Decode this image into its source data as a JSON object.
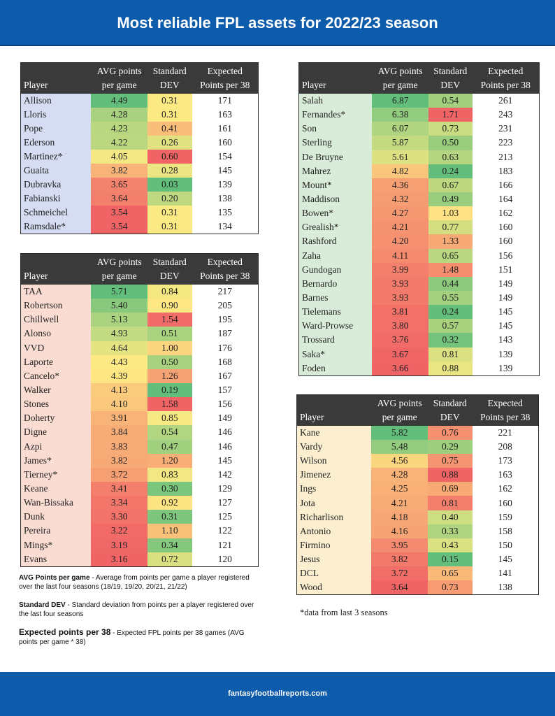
{
  "title": "Most reliable FPL assets for 2022/23 season",
  "footer": "fantasyfootballreports.com",
  "headers": {
    "player": "Player",
    "avg": "AVG points\nper game",
    "std": "Standard\nDEV",
    "exp": "Expected\nPoints per 38"
  },
  "tables": {
    "gk": {
      "rows": [
        [
          "Allison",
          "4.49",
          "0.31",
          "171"
        ],
        [
          "Lloris",
          "4.28",
          "0.31",
          "163"
        ],
        [
          "Pope",
          "4.23",
          "0.41",
          "161"
        ],
        [
          "Ederson",
          "4.22",
          "0.26",
          "160"
        ],
        [
          "Martinez*",
          "4.05",
          "0.60",
          "154"
        ],
        [
          "Guaita",
          "3.82",
          "0.28",
          "145"
        ],
        [
          "Dubravka",
          "3.65",
          "0.03",
          "139"
        ],
        [
          "Fabianski",
          "3.64",
          "0.20",
          "138"
        ],
        [
          "Schmeichel",
          "3.54",
          "0.31",
          "135"
        ],
        [
          "Ramsdale*",
          "3.54",
          "0.31",
          "134"
        ]
      ]
    },
    "def": {
      "rows": [
        [
          "TAA",
          "5.71",
          "0.84",
          "217"
        ],
        [
          "Robertson",
          "5.40",
          "0.90",
          "205"
        ],
        [
          "Chillwell",
          "5.13",
          "1.54",
          "195"
        ],
        [
          "Alonso",
          "4.93",
          "0.51",
          "187"
        ],
        [
          "VVD",
          "4.64",
          "1.00",
          "176"
        ],
        [
          "Laporte",
          "4.43",
          "0.50",
          "168"
        ],
        [
          "Cancelo*",
          "4.39",
          "1.26",
          "167"
        ],
        [
          "Walker",
          "4.13",
          "0.19",
          "157"
        ],
        [
          "Stones",
          "4.10",
          "1.58",
          "156"
        ],
        [
          "Doherty",
          "3.91",
          "0.85",
          "149"
        ],
        [
          "Digne",
          "3.84",
          "0.54",
          "146"
        ],
        [
          "Azpi",
          "3.83",
          "0.47",
          "146"
        ],
        [
          "James*",
          "3.82",
          "1.20",
          "145"
        ],
        [
          "Tierney*",
          "3.72",
          "0.83",
          "142"
        ],
        [
          "Keane",
          "3.41",
          "0.30",
          "129"
        ],
        [
          "Wan-Bissaka",
          "3.34",
          "0.92",
          "127"
        ],
        [
          "Dunk",
          "3.30",
          "0.31",
          "125"
        ],
        [
          "Pereira",
          "3.22",
          "1.10",
          "122"
        ],
        [
          "Mings*",
          "3.19",
          "0.34",
          "121"
        ],
        [
          "Evans",
          "3.16",
          "0.72",
          "120"
        ]
      ]
    },
    "mid": {
      "rows": [
        [
          "Salah",
          "6.87",
          "0.54",
          "261"
        ],
        [
          "Fernandes*",
          "6.38",
          "1.71",
          "243"
        ],
        [
          "Son",
          "6.07",
          "0.73",
          "231"
        ],
        [
          "Sterling",
          "5.87",
          "0.50",
          "223"
        ],
        [
          "De Bruyne",
          "5.61",
          "0.63",
          "213"
        ],
        [
          "Mahrez",
          "4.82",
          "0.24",
          "183"
        ],
        [
          "Mount*",
          "4.36",
          "0.67",
          "166"
        ],
        [
          "Maddison",
          "4.32",
          "0.49",
          "164"
        ],
        [
          "Bowen*",
          "4.27",
          "1.03",
          "162"
        ],
        [
          "Grealish*",
          "4.21",
          "0.77",
          "160"
        ],
        [
          "Rashford",
          "4.20",
          "1.33",
          "160"
        ],
        [
          "Zaha",
          "4.11",
          "0.65",
          "156"
        ],
        [
          "Gundogan",
          "3.99",
          "1.48",
          "151"
        ],
        [
          "Bernardo",
          "3.93",
          "0.44",
          "149"
        ],
        [
          "Barnes",
          "3.93",
          "0.55",
          "149"
        ],
        [
          "Tielemans",
          "3.81",
          "0.24",
          "145"
        ],
        [
          "Ward-Prowse",
          "3.80",
          "0.57",
          "145"
        ],
        [
          "Trossard",
          "3.76",
          "0.32",
          "143"
        ],
        [
          "Saka*",
          "3.67",
          "0.81",
          "139"
        ],
        [
          "Foden",
          "3.66",
          "0.88",
          "139"
        ]
      ]
    },
    "fwd": {
      "rows": [
        [
          "Kane",
          "5.82",
          "0.76",
          "221"
        ],
        [
          "Vardy",
          "5.48",
          "0.29",
          "208"
        ],
        [
          "Wilson",
          "4.56",
          "0.75",
          "173"
        ],
        [
          "Jimenez",
          "4.28",
          "0.88",
          "163"
        ],
        [
          "Ings",
          "4.25",
          "0.69",
          "162"
        ],
        [
          "Jota",
          "4.21",
          "0.81",
          "160"
        ],
        [
          "Richarlison",
          "4.18",
          "0.40",
          "159"
        ],
        [
          "Antonio",
          "4.16",
          "0.33",
          "158"
        ],
        [
          "Firmino",
          "3.95",
          "0.43",
          "150"
        ],
        [
          "Jesus",
          "3.82",
          "0.15",
          "145"
        ],
        [
          "DCL",
          "3.72",
          "0.65",
          "141"
        ],
        [
          "Wood",
          "3.64",
          "0.73",
          "138"
        ]
      ]
    }
  },
  "notes": {
    "avg_term": "AVG Points per game",
    "avg_desc": " - Average from points per game a player registered over the last four seasons (18/19, 19/20, 20/21, 21/22)",
    "std_term": "Standard DEV",
    "std_desc": " - Standard deviation from points per a player registered over the last four seasons",
    "exp_term": "Expected points per 38",
    "exp_desc": " - Expected FPL points per 38 games (AVG points per game * 38)"
  },
  "data_note": "*data from last 3 seasons",
  "colors": {
    "header_blue": "#0d5cab",
    "table_head": "#3a3a3a",
    "gk_tint": "#d6dcf2",
    "def_tint": "#fadcd2",
    "mid_tint": "#d9ecd9",
    "fwd_tint": "#fbefd0"
  }
}
